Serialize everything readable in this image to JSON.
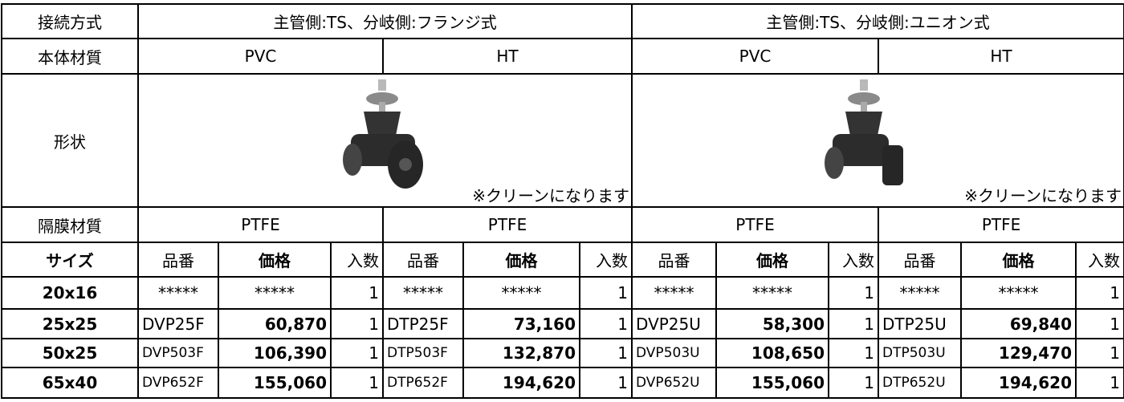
{
  "table": {
    "connection": {
      "label": "接続方式",
      "groups": [
        "主管側:TS、分岐側:フランジ式",
        "主管側:TS、分岐側:ユニオン式"
      ]
    },
    "body_material": {
      "label": "本体材質",
      "values": [
        "PVC",
        "HT",
        "PVC",
        "HT"
      ]
    },
    "shape": {
      "label": "形状",
      "notes": [
        "※クリーンになります",
        "※クリーンになります"
      ]
    },
    "diaphragm": {
      "label": "隔膜材質",
      "values": [
        "PTFE",
        "PTFE",
        "PTFE",
        "PTFE"
      ]
    },
    "header": [
      "サイズ",
      "品番",
      "価格",
      "入数",
      "品番",
      "価格",
      "入数",
      "品番",
      "価格",
      "入数",
      "品番",
      "価格",
      "入数"
    ],
    "rows": [
      [
        "20x16",
        "*****",
        "*****",
        "1",
        "*****",
        "*****",
        "1",
        "*****",
        "*****",
        "1",
        "*****",
        "*****",
        "1"
      ],
      [
        "25x25",
        "DVP25F",
        "60,870",
        "1",
        "DTP25F",
        "73,160",
        "1",
        "DVP25U",
        "58,300",
        "1",
        "DTP25U",
        "69,840",
        "1"
      ],
      [
        "50x25",
        "DVP503F",
        "106,390",
        "1",
        "DTP503F",
        "132,870",
        "1",
        "DVP503U",
        "108,650",
        "1",
        "DTP503U",
        "129,470",
        "1"
      ],
      [
        "65x40",
        "DVP652F",
        "155,060",
        "1",
        "DTP652F",
        "194,620",
        "1",
        "DVP652U",
        "155,060",
        "1",
        "DTP652U",
        "194,620",
        "1"
      ]
    ]
  }
}
